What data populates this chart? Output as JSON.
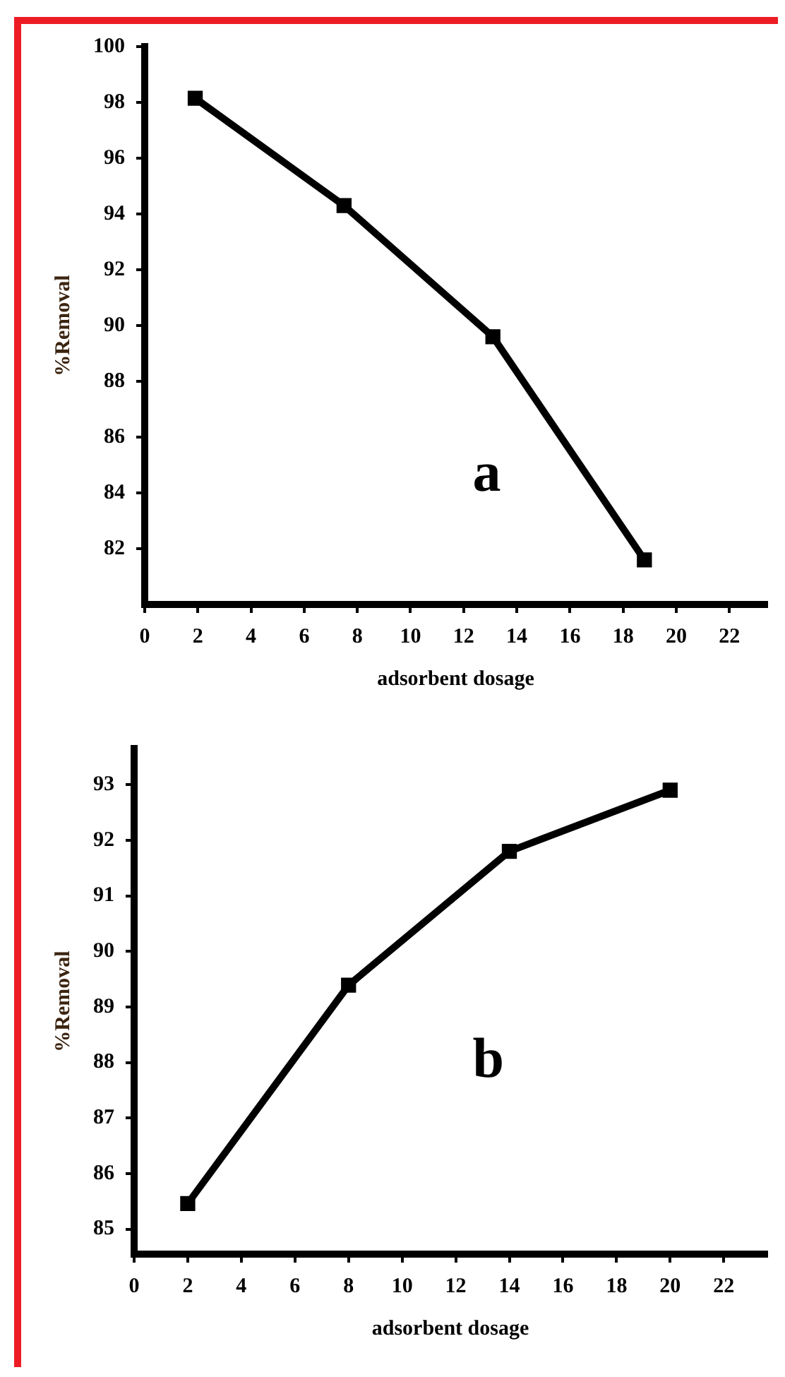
{
  "chart_data": [
    {
      "type": "line",
      "xlabel": "adsorbent dosage",
      "ylabel": "%Removal",
      "annotations": [
        "a"
      ],
      "x": [
        1.9,
        7.5,
        13.1,
        18.8
      ],
      "color": "#000000",
      "marker": "square",
      "line_style": "solid",
      "grid": false,
      "values": [
        98.15,
        94.3,
        89.6,
        81.6
      ],
      "xlim": [
        0,
        23.4
      ],
      "xticks": [
        0,
        2,
        4,
        6,
        8,
        10,
        12,
        14,
        16,
        18,
        20,
        22
      ],
      "ylim": [
        80,
        100
      ],
      "yticks": [
        82,
        84,
        86,
        88,
        90,
        92,
        94,
        96,
        98,
        100
      ]
    },
    {
      "type": "line",
      "xlabel": "adsorbent dosage",
      "ylabel": "%Removal",
      "annotations": [
        "b"
      ],
      "x": [
        2,
        8,
        14,
        20
      ],
      "color": "#000000",
      "marker": "square",
      "line_style": "solid",
      "grid": false,
      "values": [
        85.46,
        89.39,
        91.8,
        92.9
      ],
      "xlim": [
        0,
        23.6
      ],
      "xticks": [
        0,
        2,
        4,
        6,
        8,
        10,
        12,
        14,
        16,
        18,
        20,
        22
      ],
      "ylim": [
        84.55,
        93.65
      ],
      "yticks": [
        85,
        86,
        87,
        88,
        89,
        90,
        91,
        92,
        93
      ]
    }
  ]
}
